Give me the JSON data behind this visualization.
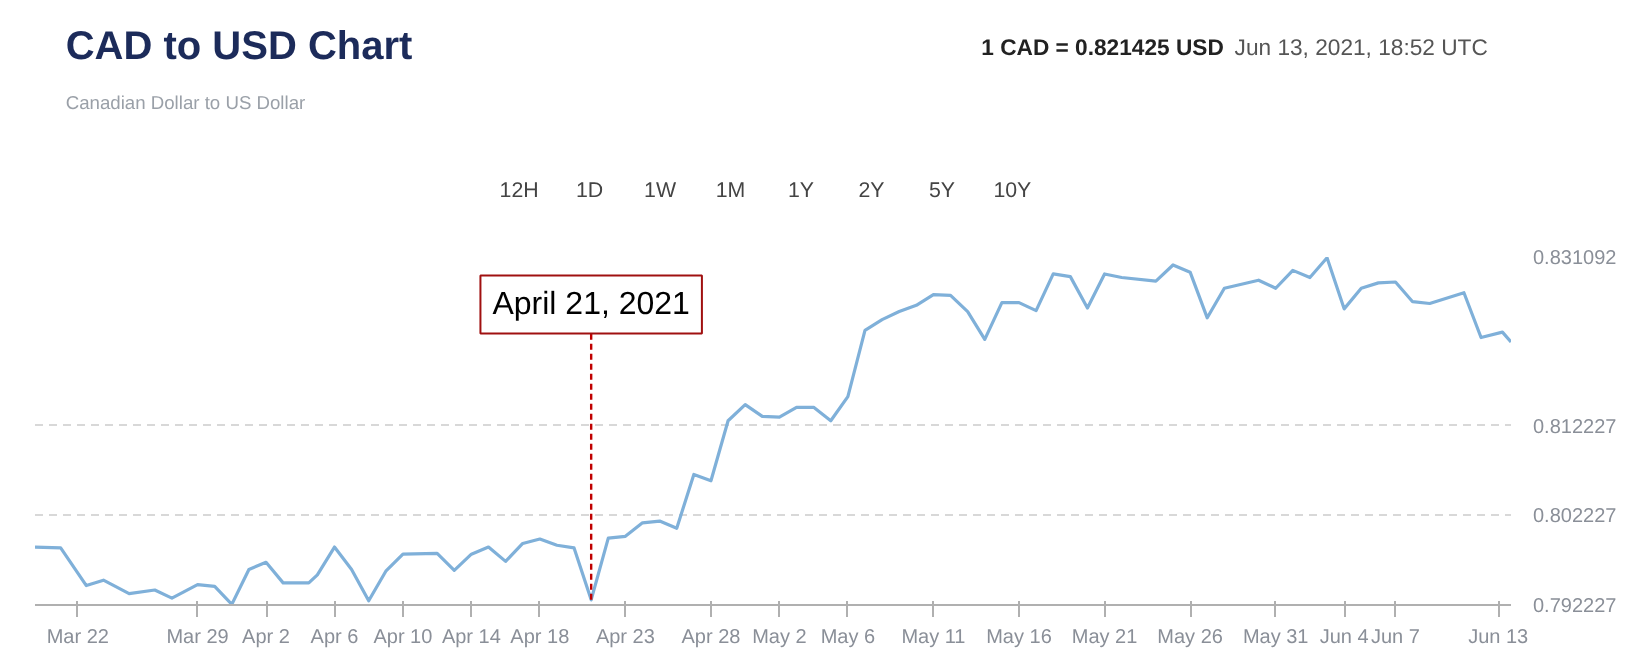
{
  "chart_data": {
    "type": "line",
    "title": "CAD to USD Chart",
    "subtitle": "Canadian Dollar to US Dollar",
    "annotations": [
      "1 CAD = 0.821425 USD",
      "Jun 13, 2021, 18:52 UTC",
      "12H",
      "1D",
      "1W",
      "1M",
      "1Y",
      "2Y",
      "5Y",
      "10Y",
      {
        "text": "April 21, 2021",
        "x": "2021-04-21",
        "y": 0.7928
      }
    ],
    "x": [
      "2021-03-19T12:00",
      "2021-03-21",
      "2021-03-22T12:00",
      "2021-03-23T12:00",
      "2021-03-25",
      "2021-03-26T12:00",
      "2021-03-27T12:00",
      "2021-03-29",
      "2021-03-30",
      "2021-03-31",
      "2021-04-01",
      "2021-04-02",
      "2021-04-03",
      "2021-04-04T12:00",
      "2021-04-05",
      "2021-04-06",
      "2021-04-07",
      "2021-04-08",
      "2021-04-09",
      "2021-04-10",
      "2021-04-12",
      "2021-04-13",
      "2021-04-14",
      "2021-04-15",
      "2021-04-16",
      "2021-04-17",
      "2021-04-18",
      "2021-04-19",
      "2021-04-20",
      "2021-04-21",
      "2021-04-22",
      "2021-04-23",
      "2021-04-24",
      "2021-04-25",
      "2021-04-26",
      "2021-04-27",
      "2021-04-28",
      "2021-04-29",
      "2021-04-30",
      "2021-05-01",
      "2021-05-02",
      "2021-05-03",
      "2021-05-04",
      "2021-05-05",
      "2021-05-06",
      "2021-05-07",
      "2021-05-08",
      "2021-05-09",
      "2021-05-10",
      "2021-05-11",
      "2021-05-12",
      "2021-05-13",
      "2021-05-14",
      "2021-05-15",
      "2021-05-16",
      "2021-05-17",
      "2021-05-18",
      "2021-05-19",
      "2021-05-20",
      "2021-05-21",
      "2021-05-22",
      "2021-05-24",
      "2021-05-25",
      "2021-05-26",
      "2021-05-27",
      "2021-05-28",
      "2021-05-30",
      "2021-05-31",
      "2021-06-01",
      "2021-06-02",
      "2021-06-03",
      "2021-06-04",
      "2021-06-05",
      "2021-06-06",
      "2021-06-07",
      "2021-06-08",
      "2021-06-09",
      "2021-06-11",
      "2021-06-12",
      "2021-06-13T06:00",
      "2021-06-13T18:00"
    ],
    "series": [
      {
        "color": "#7fb0d9",
        "values": [
          0.7987,
          0.7986,
          0.7944,
          0.795,
          0.7935,
          0.7939,
          0.793,
          0.7945,
          0.7943,
          0.7923,
          0.7962,
          0.797,
          0.7947,
          0.7947,
          0.7956,
          0.7987,
          0.7962,
          0.7927,
          0.796,
          0.7979,
          0.798,
          0.7961,
          0.7979,
          0.7987,
          0.7971,
          0.7991,
          0.7996,
          0.7989,
          0.7986,
          0.7928,
          0.7997,
          0.7999,
          0.8014,
          0.8016,
          0.8008,
          0.8068,
          0.8061,
          0.8128,
          0.8146,
          0.8133,
          0.8132,
          0.8143,
          0.8143,
          0.8128,
          0.8155,
          0.8229,
          0.8241,
          0.825,
          0.8257,
          0.8269,
          0.8268,
          0.825,
          0.8219,
          0.826,
          0.826,
          0.8251,
          0.8292,
          0.8289,
          0.8254,
          0.8292,
          0.8288,
          0.8284,
          0.8302,
          0.8294,
          0.8243,
          0.8276,
          0.8285,
          0.8276,
          0.8296,
          0.8288,
          0.831,
          0.8253,
          0.8276,
          0.8282,
          0.8283,
          0.8261,
          0.8259,
          0.8271,
          0.8221,
          0.8227,
          0.8216
        ]
      }
    ],
    "xlim": [
      "2021-03-19T12:00",
      "2021-06-13T18:00"
    ],
    "xticks": [
      {
        "value": "2021-03-22",
        "label": "Mar 22"
      },
      {
        "value": "2021-03-29",
        "label": "Mar 29"
      },
      {
        "value": "2021-04-02",
        "label": "Apr 2"
      },
      {
        "value": "2021-04-06",
        "label": "Apr 6"
      },
      {
        "value": "2021-04-10",
        "label": "Apr 10"
      },
      {
        "value": "2021-04-14",
        "label": "Apr 14"
      },
      {
        "value": "2021-04-18",
        "label": "Apr 18"
      },
      {
        "value": "2021-04-23",
        "label": "Apr 23"
      },
      {
        "value": "2021-04-28",
        "label": "Apr 28"
      },
      {
        "value": "2021-05-02",
        "label": "May 2"
      },
      {
        "value": "2021-05-06",
        "label": "May 6"
      },
      {
        "value": "2021-05-11",
        "label": "May 11"
      },
      {
        "value": "2021-05-16",
        "label": "May 16"
      },
      {
        "value": "2021-05-21",
        "label": "May 21"
      },
      {
        "value": "2021-05-26",
        "label": "May 26"
      },
      {
        "value": "2021-05-31",
        "label": "May 31"
      },
      {
        "value": "2021-06-04",
        "label": "Jun 4"
      },
      {
        "value": "2021-06-07",
        "label": "Jun 7"
      },
      {
        "value": "2021-06-13",
        "label": "Jun 13"
      }
    ],
    "ylim": [
      0.792227,
      0.831092
    ],
    "yticks": [
      0.792227,
      0.802227,
      0.812227,
      0.831092
    ],
    "grid": "y",
    "marker": "none",
    "line_style": "solid"
  }
}
